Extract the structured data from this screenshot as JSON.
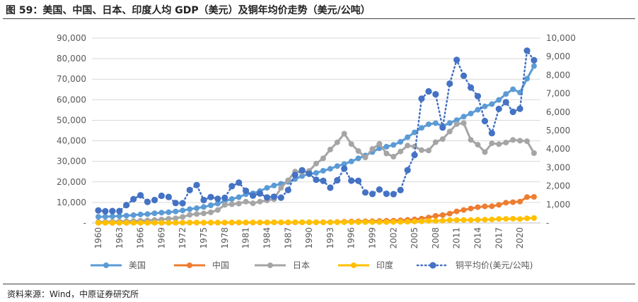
{
  "header": {
    "title": "图 59：美国、中国、日本、印度人均 GDP（美元）及铜年均价走势（美元/公吨）"
  },
  "footer": {
    "source": "资料来源：Wind，中原证券研究所"
  },
  "colors": {
    "usa": "#5B9BD5",
    "china": "#ED7D31",
    "japan": "#A5A5A5",
    "india": "#FFC000",
    "copper": "#4472C4",
    "grid": "#D9D9D9"
  },
  "chart_data": {
    "type": "line",
    "title": "美国、中国、日本、印度人均 GDP（美元）及铜年均价走势（美元/公吨）",
    "x": [
      1960,
      1961,
      1962,
      1963,
      1964,
      1965,
      1966,
      1967,
      1968,
      1969,
      1970,
      1971,
      1972,
      1973,
      1974,
      1975,
      1976,
      1977,
      1978,
      1979,
      1980,
      1981,
      1982,
      1983,
      1984,
      1985,
      1986,
      1987,
      1988,
      1989,
      1990,
      1991,
      1992,
      1993,
      1994,
      1995,
      1996,
      1997,
      1998,
      1999,
      2000,
      2001,
      2002,
      2003,
      2004,
      2005,
      2006,
      2007,
      2008,
      2009,
      2010,
      2011,
      2012,
      2013,
      2014,
      2015,
      2016,
      2017,
      2018,
      2019,
      2020,
      2021,
      2022
    ],
    "x_tick_labels": [
      "1960",
      "1963",
      "1966",
      "1969",
      "1972",
      "1975",
      "1978",
      "1981",
      "1984",
      "1987",
      "1990",
      "1993",
      "1996",
      "1999",
      "2002",
      "2005",
      "2008",
      "2011",
      "2014",
      "2017",
      "2020"
    ],
    "y_left": {
      "ylim": [
        0,
        90000
      ],
      "ticks": [
        "-",
        "10,000",
        "20,000",
        "30,000",
        "40,000",
        "50,000",
        "60,000",
        "70,000",
        "80,000",
        "90,000"
      ]
    },
    "y_right": {
      "ylim": [
        0,
        10000
      ],
      "ticks": [
        "-",
        "1,000",
        "2,000",
        "3,000",
        "4,000",
        "5,000",
        "6,000",
        "7,000",
        "8,000",
        "9,000",
        "10,000"
      ]
    },
    "legend_position": "bottom",
    "series": [
      {
        "name": "美国",
        "axis": "left",
        "color": "#5B9BD5",
        "dotted": false,
        "values": [
          3007,
          3067,
          3243,
          3374,
          3574,
          3828,
          4146,
          4336,
          4696,
          5032,
          5234,
          5609,
          6094,
          6726,
          7226,
          7801,
          8592,
          9453,
          10565,
          11674,
          12575,
          13976,
          14434,
          15544,
          17121,
          18237,
          19071,
          20039,
          21418,
          22857,
          23889,
          24342,
          25419,
          26387,
          27695,
          28691,
          29968,
          31459,
          32854,
          34515,
          36330,
          37134,
          37998,
          39490,
          41725,
          44115,
          46299,
          48050,
          48570,
          47195,
          48651,
          50066,
          51784,
          53291,
          55124,
          56763,
          57867,
          59915,
          62805,
          65095,
          63528,
          70249,
          76399
        ]
      },
      {
        "name": "中国",
        "axis": "left",
        "color": "#ED7D31",
        "dotted": false,
        "values": [
          90,
          76,
          71,
          74,
          85,
          98,
          104,
          97,
          91,
          100,
          113,
          119,
          132,
          157,
          160,
          178,
          165,
          185,
          156,
          184,
          195,
          197,
          203,
          225,
          251,
          294,
          282,
          252,
          284,
          311,
          318,
          333,
          366,
          377,
          473,
          610,
          709,
          782,
          829,
          873,
          959,
          1053,
          1149,
          1289,
          1509,
          1753,
          2099,
          2694,
          3468,
          3832,
          4550,
          5618,
          6317,
          7051,
          7679,
          8067,
          8148,
          8817,
          9905,
          10144,
          10409,
          12618,
          12720
        ]
      },
      {
        "name": "日本",
        "axis": "left",
        "color": "#A5A5A5",
        "dotted": false,
        "values": [
          479,
          564,
          639,
          722,
          836,
          920,
          1058,
          1229,
          1451,
          1669,
          2037,
          2272,
          2967,
          3998,
          4354,
          4659,
          5198,
          6335,
          8821,
          9105,
          9463,
          10361,
          9578,
          10425,
          10984,
          11585,
          17112,
          20745,
          25051,
          24813,
          25359,
          28925,
          31465,
          35766,
          39269,
          43440,
          38437,
          35022,
          31903,
          36027,
          38532,
          33846,
          32289,
          34808,
          37689,
          37218,
          35434,
          35275,
          39339,
          40855,
          44508,
          48168,
          48603,
          40454,
          38109,
          34524,
          38794,
          38387,
          39159,
          40415,
          40041,
          39827,
          34017
        ]
      },
      {
        "name": "印度",
        "axis": "left",
        "color": "#FFC000",
        "dotted": false,
        "values": [
          82,
          85,
          89,
          101,
          116,
          119,
          90,
          96,
          99,
          107,
          112,
          118,
          122,
          143,
          163,
          158,
          161,
          186,
          206,
          224,
          267,
          271,
          274,
          291,
          277,
          296,
          310,
          340,
          354,
          346,
          368,
          303,
          317,
          301,
          346,
          374,
          400,
          415,
          413,
          442,
          443,
          452,
          471,
          546,
          627,
          714,
          807,
          1028,
          999,
          1102,
          1358,
          1458,
          1444,
          1450,
          1574,
          1606,
          1733,
          1981,
          1997,
          2050,
          1913,
          2250,
          2389
        ]
      },
      {
        "name": "铜平均价(美元/公吨)",
        "axis": "right",
        "color": "#4472C4",
        "dotted": true,
        "values": [
          680,
          635,
          645,
          645,
          970,
          1290,
          1500,
          1140,
          1240,
          1470,
          1410,
          1080,
          1070,
          1780,
          2050,
          1240,
          1400,
          1310,
          1360,
          1990,
          2180,
          1740,
          1480,
          1590,
          1380,
          1420,
          1370,
          1780,
          2600,
          2850,
          2660,
          2340,
          2280,
          1910,
          2310,
          2940,
          2290,
          2280,
          1650,
          1570,
          1810,
          1580,
          1560,
          1780,
          2860,
          3680,
          6720,
          7120,
          6960,
          5160,
          7540,
          8820,
          7960,
          7330,
          6860,
          5510,
          4860,
          6170,
          6530,
          6010,
          6180,
          9320,
          8800
        ]
      }
    ]
  }
}
